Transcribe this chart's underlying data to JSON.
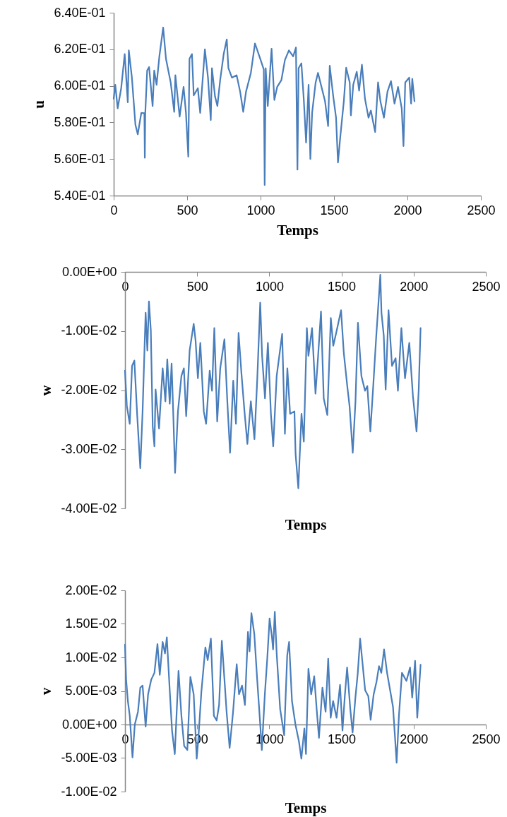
{
  "chart_data": [
    {
      "type": "line",
      "xlabel": "Temps",
      "ylabel": "u",
      "color": "#4a7ebb",
      "xlim": [
        0,
        2500
      ],
      "xticks": [
        0,
        500,
        1000,
        1500,
        2000,
        2500
      ],
      "ylim": [
        0.54,
        0.64
      ],
      "yticks": [
        {
          "value": 0.54,
          "label": "5.40E-01"
        },
        {
          "value": 0.56,
          "label": "5.60E-01"
        },
        {
          "value": 0.58,
          "label": "5.80E-01"
        },
        {
          "value": 0.6,
          "label": "6.00E-01"
        },
        {
          "value": 0.62,
          "label": "6.20E-01"
        },
        {
          "value": 0.64,
          "label": "6.40E-01"
        }
      ],
      "x": [
        0,
        11,
        27,
        51,
        75,
        96,
        103,
        124,
        148,
        164,
        188,
        209,
        212,
        215,
        228,
        241,
        265,
        276,
        292,
        311,
        337,
        356,
        388,
        412,
        420,
        449,
        476,
        492,
        508,
        516,
        533,
        545,
        573,
        589,
        621,
        642,
        661,
        669,
        690,
        706,
        725,
        749,
        770,
        781,
        805,
        837,
        861,
        882,
        901,
        934,
        962,
        998,
        1022,
        1028,
        1035,
        1049,
        1075,
        1094,
        1113,
        1142,
        1166,
        1193,
        1222,
        1241,
        1251,
        1259,
        1278,
        1294,
        1310,
        1327,
        1339,
        1351,
        1375,
        1391,
        1415,
        1439,
        1460,
        1471,
        1495,
        1514,
        1527,
        1543,
        1567,
        1583,
        1607,
        1615,
        1631,
        1655,
        1671,
        1690,
        1711,
        1735,
        1751,
        1780,
        1800,
        1816,
        1840,
        1864,
        1888,
        1912,
        1936,
        1961,
        1973,
        1985,
        2012,
        2025,
        2033,
        2048
      ],
      "values": [
        0.593,
        0.6006,
        0.5877,
        0.5987,
        0.6174,
        0.591,
        0.6194,
        0.6045,
        0.5787,
        0.5735,
        0.5852,
        0.585,
        0.5607,
        0.585,
        0.6084,
        0.6103,
        0.589,
        0.6084,
        0.6006,
        0.6161,
        0.6319,
        0.6148,
        0.6019,
        0.5858,
        0.6058,
        0.5832,
        0.5994,
        0.5852,
        0.5613,
        0.6148,
        0.6174,
        0.5948,
        0.5987,
        0.5852,
        0.62,
        0.6045,
        0.5813,
        0.6097,
        0.5942,
        0.589,
        0.6032,
        0.6174,
        0.6254,
        0.6097,
        0.6045,
        0.6058,
        0.5968,
        0.5858,
        0.5968,
        0.6071,
        0.6232,
        0.6148,
        0.609,
        0.5458,
        0.6097,
        0.589,
        0.6203,
        0.5923,
        0.5994,
        0.6032,
        0.6142,
        0.6194,
        0.6161,
        0.621,
        0.5542,
        0.6097,
        0.6123,
        0.5929,
        0.569,
        0.6006,
        0.56,
        0.5852,
        0.6019,
        0.6071,
        0.5994,
        0.5916,
        0.578,
        0.611,
        0.5942,
        0.5826,
        0.5581,
        0.5723,
        0.5916,
        0.6099,
        0.6019,
        0.5839,
        0.6006,
        0.6077,
        0.5974,
        0.6116,
        0.5929,
        0.5826,
        0.5865,
        0.5748,
        0.6019,
        0.5916,
        0.5826,
        0.5968,
        0.6026,
        0.5903,
        0.5994,
        0.5877,
        0.5671,
        0.6019,
        0.6045,
        0.5903,
        0.6039,
        0.5916
      ]
    },
    {
      "type": "line",
      "xlabel": "Temps",
      "ylabel": "w",
      "color": "#4a7ebb",
      "xlim": [
        0,
        2500
      ],
      "xticks": [
        0,
        500,
        1000,
        1500,
        2000,
        2500
      ],
      "ylim": [
        -0.04,
        0
      ],
      "yticks": [
        {
          "value": -0.04,
          "label": "-4.00E-02"
        },
        {
          "value": -0.03,
          "label": "-3.00E-02"
        },
        {
          "value": -0.02,
          "label": "-2.00E-02"
        },
        {
          "value": -0.01,
          "label": "-1.00E-02"
        },
        {
          "value": 0,
          "label": "0.00E+00"
        }
      ],
      "x": [
        0,
        13,
        33,
        49,
        65,
        85,
        106,
        122,
        143,
        155,
        166,
        179,
        192,
        204,
        212,
        236,
        261,
        280,
        293,
        310,
        323,
        334,
        347,
        367,
        391,
        408,
        424,
        448,
        476,
        489,
        505,
        522,
        546,
        562,
        587,
        603,
        619,
        639,
        660,
        689,
        709,
        728,
        750,
        769,
        787,
        807,
        828,
        848,
        872,
        897,
        916,
        937,
        950,
        970,
        990,
        1011,
        1027,
        1051,
        1089,
        1108,
        1125,
        1144,
        1174,
        1182,
        1201,
        1223,
        1239,
        1260,
        1271,
        1296,
        1320,
        1337,
        1358,
        1377,
        1402,
        1426,
        1443,
        1467,
        1497,
        1516,
        1540,
        1556,
        1578,
        1597,
        1614,
        1638,
        1663,
        1679,
        1700,
        1720,
        1741,
        1753,
        1769,
        1777,
        1793,
        1806,
        1826,
        1850,
        1875,
        1891,
        1915,
        1940,
        1970,
        1995,
        2020,
        2035,
        2048
      ],
      "values": [
        -0.0167,
        -0.0227,
        -0.0257,
        -0.0159,
        -0.015,
        -0.0244,
        -0.0332,
        -0.0236,
        -0.0069,
        -0.0133,
        -0.005,
        -0.0099,
        -0.0261,
        -0.0295,
        -0.0199,
        -0.0265,
        -0.0163,
        -0.0219,
        -0.0148,
        -0.0223,
        -0.0155,
        -0.0236,
        -0.034,
        -0.0236,
        -0.0176,
        -0.0163,
        -0.0244,
        -0.0133,
        -0.0088,
        -0.0116,
        -0.018,
        -0.012,
        -0.0236,
        -0.0257,
        -0.0167,
        -0.0201,
        -0.0095,
        -0.0253,
        -0.0163,
        -0.0114,
        -0.0219,
        -0.0306,
        -0.0184,
        -0.0257,
        -0.0103,
        -0.0172,
        -0.0236,
        -0.0291,
        -0.0219,
        -0.0283,
        -0.0184,
        -0.0052,
        -0.0142,
        -0.0214,
        -0.012,
        -0.024,
        -0.0295,
        -0.0176,
        -0.0105,
        -0.0274,
        -0.0163,
        -0.024,
        -0.0236,
        -0.0308,
        -0.0366,
        -0.024,
        -0.0287,
        -0.0095,
        -0.0142,
        -0.0095,
        -0.0206,
        -0.0146,
        -0.0067,
        -0.0214,
        -0.0242,
        -0.0078,
        -0.0125,
        -0.0099,
        -0.0065,
        -0.0137,
        -0.0193,
        -0.0227,
        -0.0306,
        -0.0219,
        -0.0086,
        -0.0176,
        -0.0201,
        -0.0193,
        -0.027,
        -0.0193,
        -0.0108,
        -0.0065,
        -0.0005,
        -0.0069,
        -0.0108,
        -0.0199,
        -0.0065,
        -0.0159,
        -0.0146,
        -0.0201,
        -0.0095,
        -0.018,
        -0.012,
        -0.021,
        -0.027,
        -0.02,
        -0.0095
      ]
    },
    {
      "type": "line",
      "xlabel": "Temps",
      "ylabel": "v",
      "color": "#4a7ebb",
      "xlim": [
        0,
        2500
      ],
      "xticks": [
        0,
        500,
        1000,
        1500,
        2000,
        2500
      ],
      "ylim": [
        -0.01,
        0.02
      ],
      "yticks": [
        {
          "value": -0.01,
          "label": "-1.00E-02"
        },
        {
          "value": -0.005,
          "label": "-5.00E-03"
        },
        {
          "value": 0,
          "label": "0.00E+00"
        },
        {
          "value": 0.005,
          "label": "5.00E-03"
        },
        {
          "value": 0.01,
          "label": "1.00E-02"
        },
        {
          "value": 0.015,
          "label": "1.50E-02"
        },
        {
          "value": 0.02,
          "label": "2.00E-02"
        }
      ],
      "x": [
        0,
        8,
        20,
        33,
        52,
        68,
        90,
        106,
        122,
        143,
        160,
        182,
        204,
        225,
        241,
        261,
        277,
        290,
        310,
        326,
        345,
        371,
        391,
        410,
        432,
        453,
        476,
        497,
        508,
        529,
        557,
        573,
        595,
        616,
        635,
        652,
        671,
        692,
        704,
        725,
        749,
        774,
        790,
        811,
        831,
        852,
        863,
        876,
        896,
        916,
        937,
        948,
        969,
        986,
        1002,
        1018,
        1026,
        1038,
        1051,
        1075,
        1103,
        1124,
        1137,
        1157,
        1181,
        1205,
        1222,
        1243,
        1254,
        1271,
        1290,
        1311,
        1328,
        1344,
        1368,
        1390,
        1408,
        1425,
        1442,
        1466,
        1490,
        1507,
        1523,
        1539,
        1561,
        1577,
        1596,
        1613,
        1629,
        1645,
        1664,
        1686,
        1702,
        1723,
        1743,
        1760,
        1776,
        1795,
        1816,
        1837,
        1857,
        1870,
        1882,
        1898,
        1919,
        1950,
        1975,
        1990,
        2010,
        2025,
        2048
      ],
      "values": [
        0.0119,
        0.0067,
        0.0035,
        0.0013,
        -0.0049,
        0.0,
        0.0019,
        0.0055,
        0.0058,
        -0.0003,
        0.0045,
        0.0067,
        0.0077,
        0.012,
        0.0074,
        0.0123,
        0.0106,
        0.013,
        0.0051,
        -0.0009,
        -0.0044,
        0.008,
        0.0013,
        -0.0032,
        -0.0038,
        0.0071,
        0.0045,
        -0.0051,
        -0.0022,
        0.0048,
        0.0115,
        0.0096,
        0.0128,
        0.0013,
        0.0006,
        0.0029,
        0.0125,
        0.0058,
        0.0019,
        -0.0035,
        0.0019,
        0.009,
        0.0045,
        0.0058,
        0.0029,
        0.0138,
        0.0109,
        0.0166,
        0.0135,
        0.0067,
        0.0,
        -0.0038,
        0.0045,
        0.0099,
        0.0158,
        0.0131,
        0.0112,
        0.0168,
        0.0106,
        0.0023,
        -0.0016,
        0.0103,
        0.0123,
        0.0035,
        0.0,
        -0.0025,
        -0.0051,
        -0.0006,
        -0.0044,
        0.0083,
        0.0045,
        0.0072,
        0.0023,
        -0.002,
        0.0055,
        0.0019,
        0.0098,
        0.001,
        0.0035,
        0.001,
        0.0059,
        -0.0009,
        0.0042,
        0.0085,
        0.0023,
        -0.0012,
        0.0039,
        0.0077,
        0.0128,
        0.0093,
        0.0051,
        0.0042,
        0.0007,
        0.0045,
        0.0064,
        0.0087,
        0.0077,
        0.0112,
        0.0077,
        0.0051,
        0.0026,
        -0.0016,
        -0.0057,
        0.0013,
        0.0077,
        0.0065,
        0.0085,
        0.004,
        0.0095,
        0.001,
        0.0089
      ]
    }
  ]
}
